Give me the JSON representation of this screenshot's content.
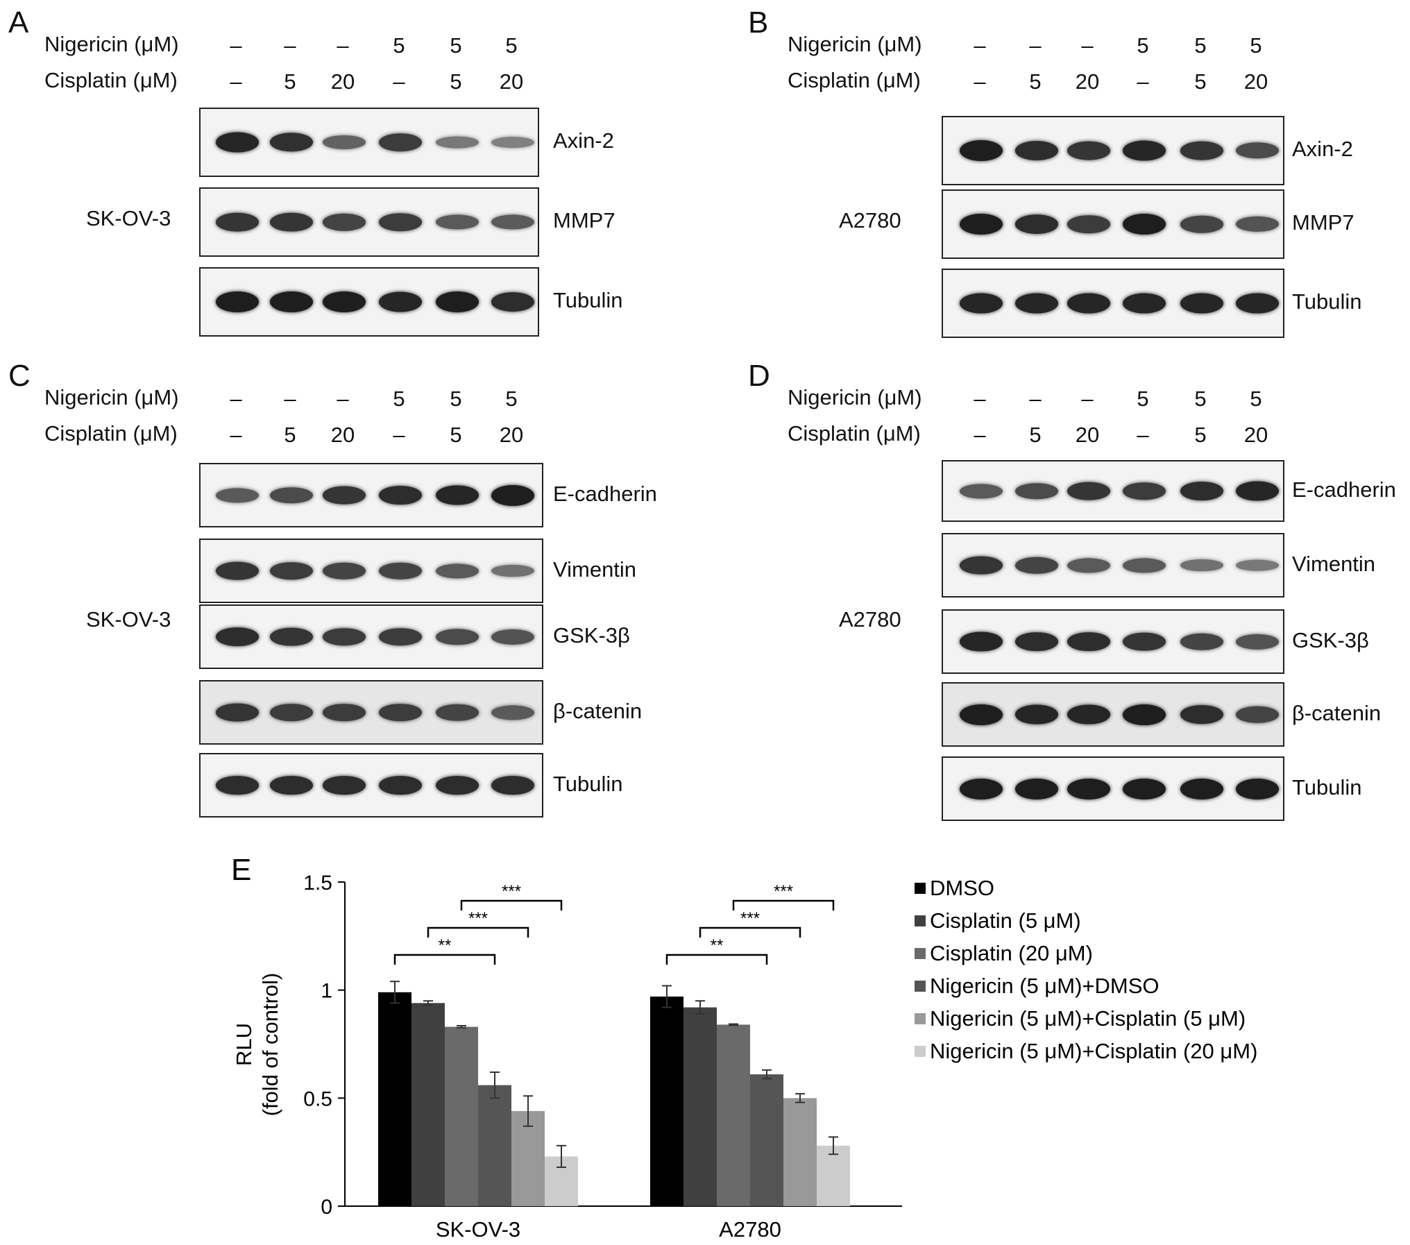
{
  "treatment_header": {
    "nigericin_label": "Nigericin (μM)",
    "cisplatin_label": "Cisplatin (μM)",
    "nigericin": [
      "–",
      "–",
      "–",
      "5",
      "5",
      "5"
    ],
    "cisplatin": [
      "–",
      "5",
      "20",
      "–",
      "5",
      "20"
    ]
  },
  "panels": [
    {
      "label": "A",
      "cell_line": "SK-OV-3",
      "blots": [
        {
          "protein": "Axin-2",
          "intensity": [
            0.95,
            0.88,
            0.55,
            0.8,
            0.4,
            0.35
          ]
        },
        {
          "protein": "MMP7",
          "intensity": [
            0.85,
            0.85,
            0.75,
            0.8,
            0.6,
            0.6
          ]
        },
        {
          "protein": "Tubulin",
          "intensity": [
            1,
            1,
            1,
            0.95,
            1,
            0.9
          ]
        }
      ]
    },
    {
      "label": "B",
      "cell_line": "A2780",
      "blots": [
        {
          "protein": "Axin-2",
          "intensity": [
            1,
            0.9,
            0.85,
            0.95,
            0.85,
            0.7
          ]
        },
        {
          "protein": "MMP7",
          "intensity": [
            1,
            0.9,
            0.8,
            1,
            0.75,
            0.65
          ]
        },
        {
          "protein": "Tubulin",
          "intensity": [
            0.95,
            0.95,
            0.95,
            0.95,
            0.95,
            0.95
          ]
        }
      ]
    },
    {
      "label": "C",
      "cell_line": "SK-OV-3",
      "blots": [
        {
          "protein": "E-cadherin",
          "intensity": [
            0.6,
            0.7,
            0.85,
            0.9,
            0.95,
            1
          ]
        },
        {
          "protein": "Vimentin",
          "intensity": [
            0.85,
            0.8,
            0.75,
            0.75,
            0.6,
            0.45
          ]
        },
        {
          "protein": "GSK-3β",
          "intensity": [
            0.9,
            0.85,
            0.8,
            0.8,
            0.7,
            0.65
          ]
        },
        {
          "protein": "β-catenin",
          "intensity": [
            0.85,
            0.8,
            0.8,
            0.8,
            0.75,
            0.6
          ]
        },
        {
          "protein": "Tubulin",
          "intensity": [
            0.9,
            0.9,
            0.9,
            0.9,
            0.9,
            0.9
          ]
        }
      ]
    },
    {
      "label": "D",
      "cell_line": "A2780",
      "blots": [
        {
          "protein": "E-cadherin",
          "intensity": [
            0.6,
            0.7,
            0.85,
            0.8,
            0.9,
            0.95
          ]
        },
        {
          "protein": "Vimentin",
          "intensity": [
            0.85,
            0.75,
            0.6,
            0.6,
            0.45,
            0.4
          ]
        },
        {
          "protein": "GSK-3β",
          "intensity": [
            0.95,
            0.9,
            0.9,
            0.85,
            0.75,
            0.65
          ]
        },
        {
          "protein": "β-catenin",
          "intensity": [
            1,
            0.95,
            0.95,
            1,
            0.9,
            0.75
          ]
        },
        {
          "protein": "Tubulin",
          "intensity": [
            1,
            1,
            1,
            1,
            1,
            1
          ]
        }
      ]
    }
  ],
  "chart_panel_label": "E",
  "chart_data": {
    "type": "bar",
    "categories": [
      "SK-OV-3",
      "A2780"
    ],
    "ylabel": "RLU",
    "ylabel2": "(fold of control)",
    "ylim": [
      0,
      1.5
    ],
    "yticks": [
      "0",
      "0.5",
      "1",
      "1.5"
    ],
    "series": [
      {
        "name": "DMSO",
        "color": "#000000",
        "values": [
          0.99,
          0.97
        ],
        "errors": [
          0.05,
          0.05
        ]
      },
      {
        "name": "Cisplatin (5 μM)",
        "color": "#404040",
        "values": [
          0.94,
          0.92
        ],
        "errors": [
          0.01,
          0.03
        ]
      },
      {
        "name": "Cisplatin (20 μM)",
        "color": "#6a6a6a",
        "values": [
          0.83,
          0.84
        ],
        "errors": [
          0.005,
          0.003
        ]
      },
      {
        "name": "Nigericin (5 μM)+DMSO",
        "color": "#555555",
        "values": [
          0.56,
          0.61
        ],
        "errors": [
          0.06,
          0.02
        ]
      },
      {
        "name": "Nigericin (5 μM)+Cisplatin (5 μM)",
        "color": "#999999",
        "values": [
          0.44,
          0.5
        ],
        "errors": [
          0.07,
          0.02
        ]
      },
      {
        "name": "Nigericin (5 μM)+Cisplatin (20 μM)",
        "color": "#cccccc",
        "values": [
          0.23,
          0.28
        ],
        "errors": [
          0.05,
          0.04
        ]
      }
    ],
    "significance": [
      {
        "from_series": 0,
        "to_series": 3,
        "label": "**"
      },
      {
        "from_series": 1,
        "to_series": 4,
        "label": "***"
      },
      {
        "from_series": 2,
        "to_series": 5,
        "label": "***"
      }
    ]
  }
}
